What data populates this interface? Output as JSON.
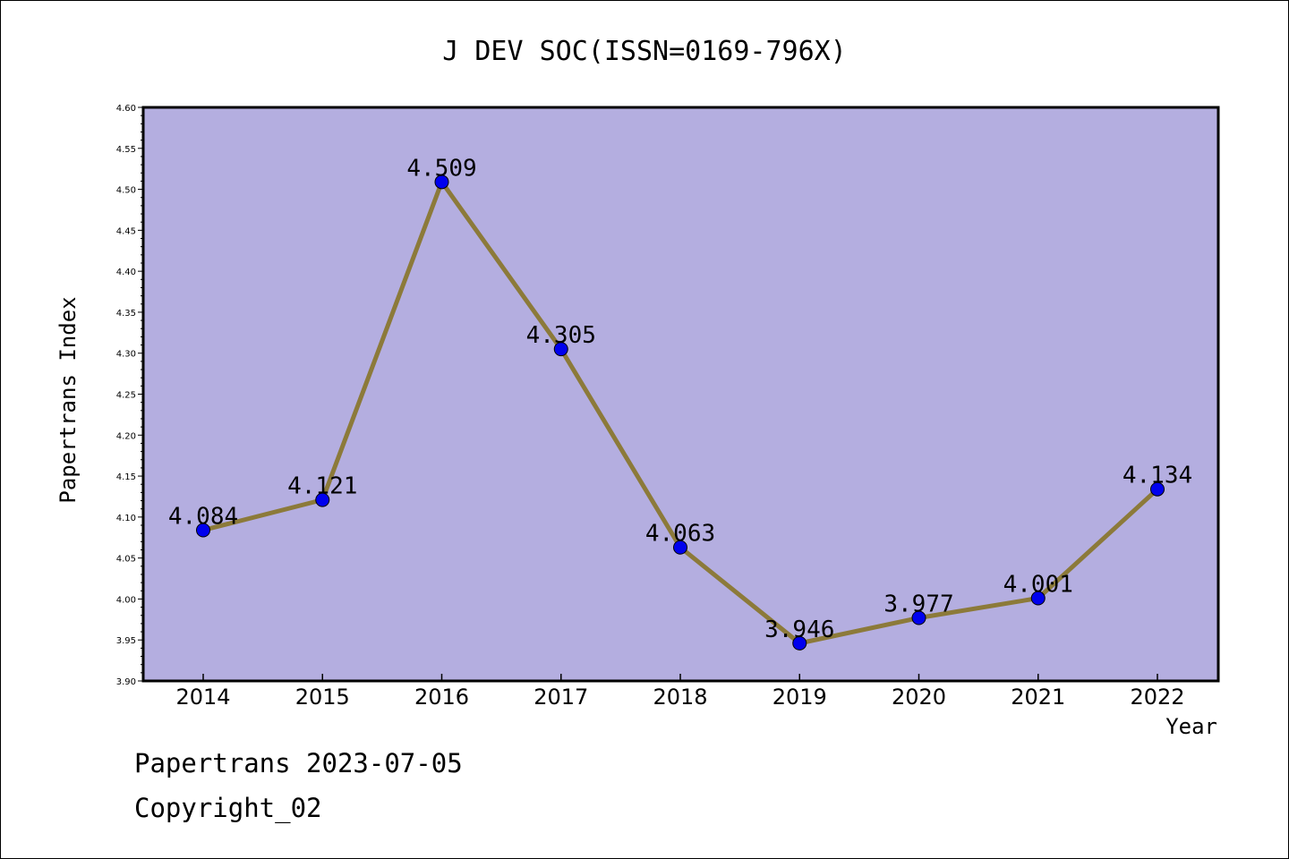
{
  "chart_data": {
    "type": "line",
    "title": "J DEV SOC(ISSN=0169-796X)",
    "xlabel": "Year",
    "ylabel": "Papertrans Index",
    "categories": [
      "2014",
      "2015",
      "2016",
      "2017",
      "2018",
      "2019",
      "2020",
      "2021",
      "2022"
    ],
    "values": [
      4.084,
      4.121,
      4.509,
      4.305,
      4.063,
      3.946,
      3.977,
      4.001,
      4.134
    ],
    "data_labels": [
      "4.084",
      "4.121",
      "4.509",
      "4.305",
      "4.063",
      "3.946",
      "3.977",
      "4.001",
      "4.134"
    ],
    "ylim": [
      3.9,
      4.6
    ],
    "yticks": [
      "3.90",
      "3.95",
      "4.00",
      "4.05",
      "4.10",
      "4.15",
      "4.20",
      "4.25",
      "4.30",
      "4.35",
      "4.40",
      "4.45",
      "4.50",
      "4.55",
      "4.60"
    ],
    "grid": false,
    "legend": "none",
    "colors": {
      "plot_background": "#b4aee0",
      "line": "#8c7a3a",
      "marker": "#0000ee"
    }
  },
  "footer": {
    "line1": "Papertrans 2023-07-05",
    "line2": "Copyright_02"
  }
}
